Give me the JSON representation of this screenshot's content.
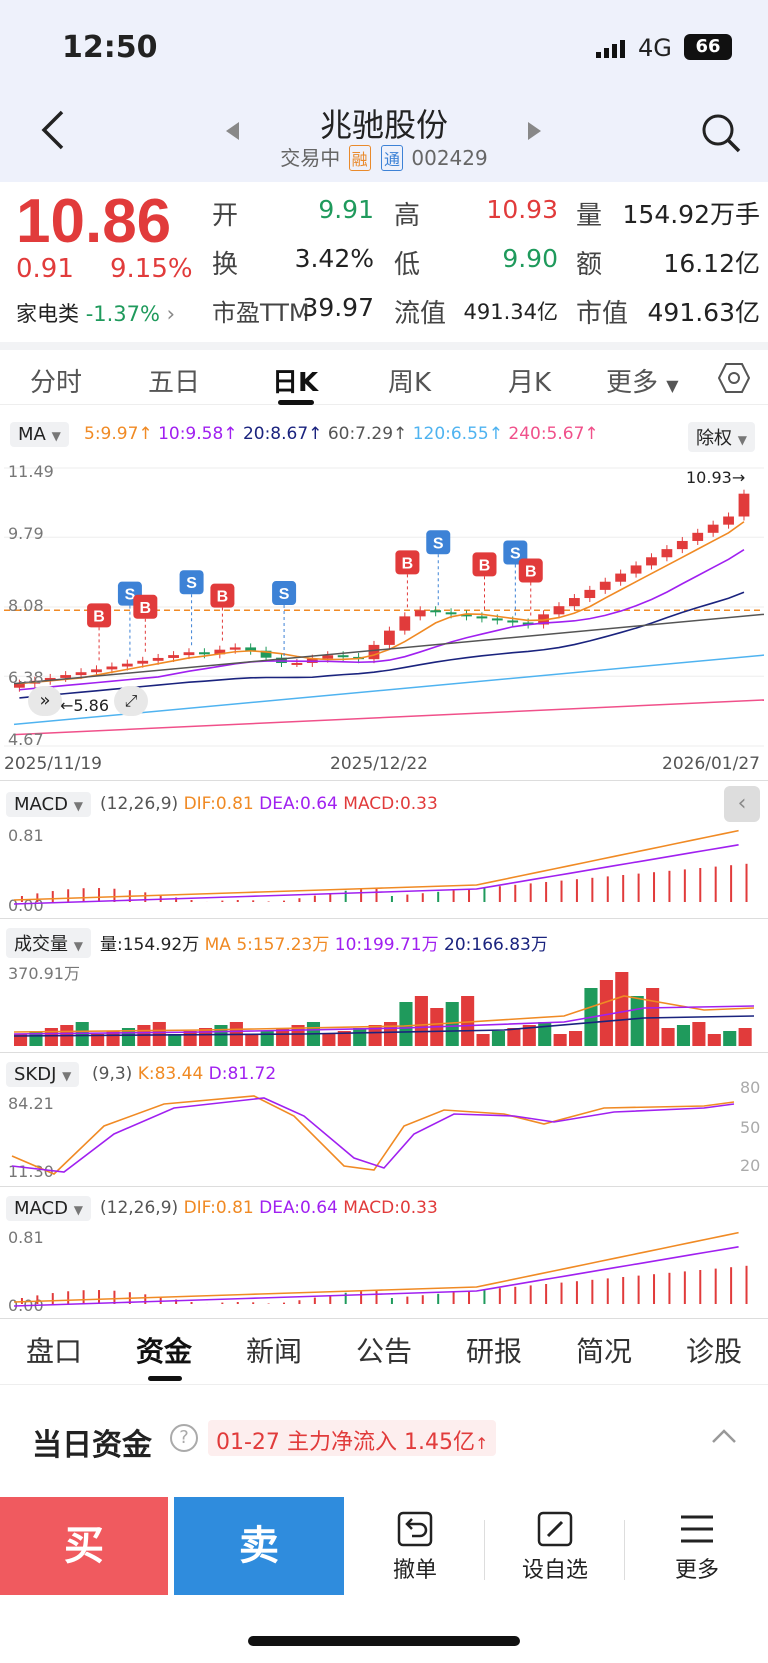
{
  "status": {
    "time": "12:50",
    "network": "4G",
    "battery": "66"
  },
  "header": {
    "title": "兆驰股份",
    "status": "交易中",
    "tag_rong": "融",
    "tag_tong": "通",
    "code": "002429"
  },
  "quote": {
    "price": "10.86",
    "change": "0.91",
    "change_pct": "9.15%",
    "sector": "家电类",
    "sector_pct": "-1.37%",
    "open_lbl": "开",
    "open": "9.91",
    "high_lbl": "高",
    "high": "10.93",
    "vol_lbl": "量",
    "vol": "154.92万手",
    "turn_lbl": "换",
    "turn": "3.42%",
    "low_lbl": "低",
    "low": "9.90",
    "amt_lbl": "额",
    "amt": "16.12亿",
    "pe_lbl": "市盈TTM",
    "pe": "39.97",
    "float_lbl": "流值",
    "float": "491.34亿",
    "cap_lbl": "市值",
    "cap": "491.63亿"
  },
  "tabs": [
    "分时",
    "五日",
    "日K",
    "周K",
    "月K",
    "更多"
  ],
  "active_tab": "日K",
  "ma_bar": {
    "ma_btn": "MA",
    "ma5": "5:9.97",
    "ma10": "10:9.58",
    "ma20": "20:8.67",
    "ma60": "60:7.29",
    "ma120": "120:6.55",
    "ma240": "240:5.67",
    "adjust_btn": "除权"
  },
  "kline": {
    "y_top": "11.49",
    "y_2": "9.79",
    "y_3": "8.08",
    "y_4": "6.38",
    "y_bottom": "4.67",
    "high_mark": "10.93",
    "low_mark": "5.86",
    "dates": [
      "2025/11/19",
      "2025/12/22",
      "2026/01/27"
    ]
  },
  "macd1": {
    "btn": "MACD",
    "params": "(12,26,9)",
    "dif": "DIF:0.81",
    "dea": "DEA:0.64",
    "macd": "MACD:0.33",
    "y_top": "0.81",
    "y_bottom": "0.00"
  },
  "volume": {
    "btn": "成交量",
    "vol": "量:154.92万",
    "ma5": "MA 5:157.23万",
    "ma10": "10:199.71万",
    "ma20": "20:166.83万",
    "y_top": "370.91万"
  },
  "skdj": {
    "btn": "SKDJ",
    "params": "(9,3)",
    "k": "K:83.44",
    "d": "D:81.72",
    "y_top": "84.21",
    "y_bottom": "11.30",
    "r80": "80",
    "r50": "50",
    "r20": "20"
  },
  "macd2": {
    "btn": "MACD",
    "params": "(12,26,9)",
    "dif": "DIF:0.81",
    "dea": "DEA:0.64",
    "macd": "MACD:0.33",
    "y_top": "0.81",
    "y_bottom": "0.00"
  },
  "bottom_tabs": [
    "盘口",
    "资金",
    "新闻",
    "公告",
    "研报",
    "简况",
    "诊股"
  ],
  "active_bottom_tab": "资金",
  "fund": {
    "title": "当日资金",
    "date": "01-27",
    "text": "主力净流入",
    "amount": "1.45亿"
  },
  "footer": {
    "buy": "买",
    "sell": "卖",
    "cancel": "撤单",
    "watch": "设自选",
    "more": "更多"
  },
  "colors": {
    "up": "#e13b3b",
    "down": "#1f9a5c",
    "buy": "#f05a5f",
    "sell": "#2f8cdd"
  }
}
